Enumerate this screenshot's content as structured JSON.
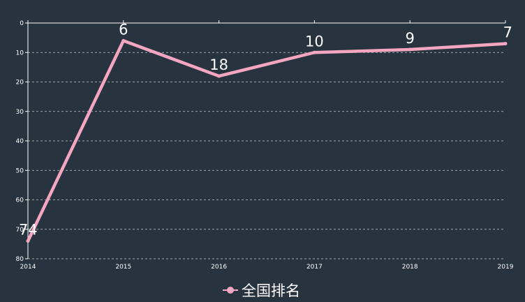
{
  "chart_data": {
    "type": "line",
    "categories": [
      "2014",
      "2015",
      "2016",
      "2017",
      "2018",
      "2019"
    ],
    "series": [
      {
        "name": "全国排名",
        "values": [
          74,
          6,
          18,
          10,
          9,
          7
        ],
        "color": "#f4a6c0"
      }
    ],
    "y_ticks": [
      "0",
      "10",
      "20",
      "30",
      "40",
      "50",
      "60",
      "70",
      "80"
    ],
    "ylim": [
      0,
      80
    ],
    "y_inverted": true,
    "grid": true,
    "legend_position": "bottom-center",
    "background": "#283340",
    "axis_color": "#ffffff",
    "grid_color": "#ffffff"
  }
}
